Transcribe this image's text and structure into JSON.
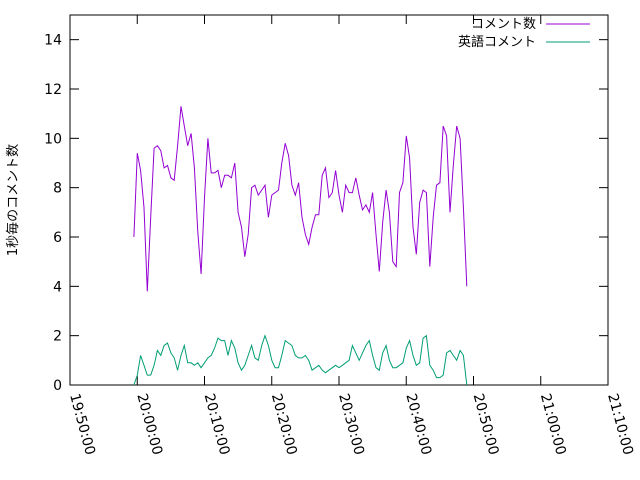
{
  "chart_data": {
    "type": "line",
    "ylabel": "1秒毎のコメント数",
    "xlim": [
      "19:50:00",
      "21:10:00"
    ],
    "ylim": [
      0,
      15
    ],
    "x_ticks": [
      "19:50:00",
      "20:00:00",
      "20:10:00",
      "20:20:00",
      "20:30:00",
      "20:40:00",
      "20:50:00",
      "21:00:00",
      "21:10:00"
    ],
    "y_ticks": [
      "0",
      "2",
      "4",
      "6",
      "8",
      "10",
      "12",
      "14"
    ],
    "legend_position": "top-right",
    "x_start": "19:59:30",
    "x_step_seconds": 30,
    "series": [
      {
        "name": "コメント数",
        "color": "#9400d3",
        "values": [
          6.0,
          9.4,
          8.7,
          7.2,
          3.8,
          6.8,
          9.6,
          9.7,
          9.5,
          8.8,
          8.9,
          8.4,
          8.3,
          9.7,
          11.3,
          10.5,
          9.7,
          10.2,
          8.8,
          6.2,
          4.5,
          7.6,
          10.0,
          8.6,
          8.6,
          8.7,
          8.0,
          8.5,
          8.5,
          8.4,
          9.0,
          7.0,
          6.4,
          5.2,
          6.1,
          8.0,
          8.1,
          7.7,
          7.9,
          8.1,
          6.8,
          7.7,
          7.8,
          7.9,
          9.0,
          9.8,
          9.3,
          8.1,
          7.7,
          8.2,
          6.8,
          6.1,
          5.7,
          6.4,
          6.9,
          6.9,
          8.5,
          8.8,
          7.6,
          7.8,
          8.7,
          7.7,
          7.0,
          8.1,
          7.8,
          7.8,
          8.4,
          7.7,
          7.1,
          7.3,
          7.0,
          7.8,
          6.1,
          4.6,
          6.6,
          7.9,
          7.0,
          5.0,
          4.8,
          7.8,
          8.2,
          10.1,
          9.2,
          6.4,
          5.3,
          7.4,
          7.9,
          7.8,
          4.8,
          6.8,
          8.1,
          8.2,
          10.5,
          10.1,
          7.0,
          8.9,
          10.5,
          10.0,
          7.2,
          4.0
        ]
      },
      {
        "name": "英語コメント",
        "color": "#009e73",
        "values": [
          0.0,
          0.4,
          1.2,
          0.8,
          0.4,
          0.4,
          0.8,
          1.4,
          1.2,
          1.6,
          1.7,
          1.3,
          1.1,
          0.6,
          1.2,
          1.6,
          0.9,
          0.9,
          0.8,
          0.9,
          0.7,
          0.9,
          1.1,
          1.2,
          1.5,
          1.9,
          1.8,
          1.8,
          1.2,
          1.8,
          1.5,
          0.9,
          0.6,
          0.8,
          1.2,
          1.6,
          1.1,
          1.0,
          1.6,
          2.0,
          1.6,
          1.0,
          0.7,
          0.7,
          1.2,
          1.8,
          1.7,
          1.6,
          1.2,
          1.1,
          1.1,
          1.2,
          1.0,
          0.6,
          0.7,
          0.8,
          0.6,
          0.5,
          0.6,
          0.7,
          0.8,
          0.7,
          0.8,
          0.9,
          1.0,
          1.6,
          1.3,
          1.0,
          1.3,
          1.6,
          1.8,
          1.2,
          0.7,
          0.6,
          1.3,
          1.6,
          1.0,
          0.7,
          0.7,
          0.8,
          0.9,
          1.5,
          1.8,
          1.2,
          0.8,
          0.9,
          1.9,
          2.0,
          0.8,
          0.6,
          0.3,
          0.3,
          0.4,
          1.3,
          1.4,
          1.2,
          1.0,
          1.4,
          1.2,
          0.0
        ]
      }
    ]
  }
}
